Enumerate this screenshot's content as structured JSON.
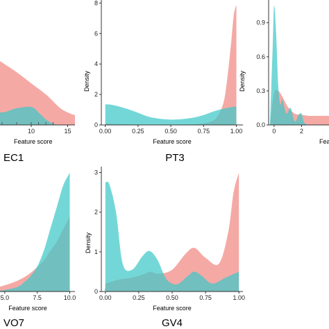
{
  "colors": {
    "red": "#f4a09b",
    "teal": "#3ec8c8",
    "overlap": "#5b9e9a",
    "axis": "#333333",
    "text": "#222222"
  },
  "chart_data": [
    {
      "id": "ec1",
      "type": "area",
      "title": "EC1",
      "xlabel": "Feature score",
      "ylabel": "",
      "xlim": [
        0,
        16
      ],
      "ylim": [
        0,
        0.09
      ],
      "xticks": [
        "10",
        "15"
      ],
      "xtick_values": [
        10,
        15
      ],
      "yticks": [],
      "ytick_values": [],
      "rug": [
        6,
        8,
        10,
        11,
        12,
        13
      ],
      "series": [
        {
          "color": "red",
          "x": [
            0,
            2,
            4,
            6,
            8,
            10,
            12,
            13,
            14,
            15,
            16
          ],
          "y": [
            0.06,
            0.057,
            0.052,
            0.045,
            0.038,
            0.03,
            0.022,
            0.017,
            0.012,
            0.009,
            0.007
          ]
        },
        {
          "color": "teal",
          "x": [
            0,
            2,
            4,
            6,
            8,
            10,
            11,
            12,
            13,
            14,
            16
          ],
          "y": [
            0.014,
            0.014,
            0.011,
            0.009,
            0.012,
            0.013,
            0.009,
            0.004,
            0.001,
            0.0,
            0.0
          ]
        }
      ]
    },
    {
      "id": "pt3",
      "type": "area",
      "title": "PT3",
      "xlabel": "Feature score",
      "ylabel": "Density",
      "xlim": [
        -0.03,
        1.05
      ],
      "ylim": [
        0,
        8.2
      ],
      "xticks": [
        "0.00",
        "0.25",
        "0.50",
        "0.75",
        "1.00"
      ],
      "xtick_values": [
        0,
        0.25,
        0.5,
        0.75,
        1.0
      ],
      "yticks": [
        "0",
        "2",
        "4",
        "6",
        "8"
      ],
      "ytick_values": [
        0,
        2,
        4,
        6,
        8
      ],
      "rug": [],
      "series": [
        {
          "color": "red",
          "x": [
            0,
            0.1,
            0.3,
            0.5,
            0.7,
            0.8,
            0.85,
            0.9,
            0.93,
            0.96,
            0.98,
            1.0
          ],
          "y": [
            0.1,
            0.05,
            0.02,
            0.02,
            0.05,
            0.2,
            0.5,
            1.4,
            3.0,
            5.4,
            7.2,
            7.9
          ]
        },
        {
          "color": "teal",
          "x": [
            0,
            0.05,
            0.15,
            0.25,
            0.35,
            0.5,
            0.65,
            0.75,
            0.85,
            0.95,
            1.0
          ],
          "y": [
            1.35,
            1.32,
            1.1,
            0.8,
            0.5,
            0.35,
            0.45,
            0.65,
            0.95,
            1.15,
            1.2
          ]
        }
      ]
    },
    {
      "id": "third",
      "type": "area",
      "title": "",
      "xlabel": "Fea",
      "ylabel": "Density",
      "xlim": [
        -0.4,
        4
      ],
      "ylim": [
        0,
        1.1
      ],
      "xticks": [
        "0",
        "2"
      ],
      "xtick_values": [
        0,
        2
      ],
      "yticks": [
        "0.0",
        "0.3",
        "0.6",
        "0.9"
      ],
      "ytick_values": [
        0,
        0.3,
        0.6,
        0.9
      ],
      "rug": [],
      "series": [
        {
          "color": "red",
          "x": [
            -0.3,
            0,
            0.3,
            0.6,
            1.0,
            1.5,
            2.0,
            2.5,
            3.0,
            3.5,
            4.0
          ],
          "y": [
            0.0,
            0.28,
            0.3,
            0.25,
            0.16,
            0.1,
            0.09,
            0.08,
            0.08,
            0.08,
            0.08
          ]
        },
        {
          "color": "teal",
          "x": [
            -0.3,
            -0.1,
            0,
            0.15,
            0.3,
            0.45,
            0.6,
            0.9,
            1.2,
            1.5,
            1.8,
            2.0,
            2.2,
            2.6,
            3.0,
            4.0
          ],
          "y": [
            0.0,
            0.7,
            1.05,
            0.8,
            0.35,
            0.18,
            0.22,
            0.1,
            0.15,
            0.03,
            0.09,
            0.1,
            0.02,
            0.0,
            0.0,
            0.0
          ]
        }
      ]
    },
    {
      "id": "vo7",
      "type": "area",
      "title": "VO7",
      "xlabel": "Feature score",
      "ylabel": "",
      "xlim": [
        2.5,
        10.4
      ],
      "ylim": [
        0,
        0.4
      ],
      "xticks": [
        "5.0",
        "7.5",
        "10.0"
      ],
      "xtick_values": [
        5.0,
        7.5,
        10.0
      ],
      "yticks": [],
      "ytick_values": [],
      "rug": [],
      "series": [
        {
          "color": "red",
          "x": [
            2.5,
            4,
            5,
            6,
            7,
            8,
            8.5,
            9,
            9.5,
            10
          ],
          "y": [
            0.005,
            0.01,
            0.02,
            0.035,
            0.06,
            0.1,
            0.13,
            0.16,
            0.2,
            0.24
          ]
        },
        {
          "color": "teal",
          "x": [
            2.5,
            4,
            5,
            6,
            6.5,
            7,
            7.5,
            8,
            8.5,
            9,
            9.5,
            10
          ],
          "y": [
            0.0,
            0.0,
            0.005,
            0.015,
            0.03,
            0.05,
            0.08,
            0.13,
            0.2,
            0.27,
            0.34,
            0.38
          ]
        }
      ]
    },
    {
      "id": "gv4",
      "type": "area",
      "title": "GV4",
      "xlabel": "Feature score",
      "ylabel": "Density",
      "xlim": [
        -0.03,
        1.03
      ],
      "ylim": [
        0,
        3.15
      ],
      "xticks": [
        "0.00",
        "0.25",
        "0.50",
        "0.75",
        "1.00"
      ],
      "xtick_values": [
        0,
        0.25,
        0.5,
        0.75,
        1.0
      ],
      "yticks": [
        "0",
        "1",
        "2",
        "3"
      ],
      "ytick_values": [
        0,
        1,
        2,
        3
      ],
      "rug": [
        0,
        0.333
      ],
      "series": [
        {
          "color": "red",
          "x": [
            0,
            0.1,
            0.2,
            0.3,
            0.333,
            0.4,
            0.5,
            0.6,
            0.667,
            0.75,
            0.85,
            0.92,
            0.96,
            1.0
          ],
          "y": [
            0.2,
            0.3,
            0.35,
            0.45,
            0.5,
            0.45,
            0.55,
            0.95,
            1.1,
            0.85,
            0.7,
            1.5,
            2.5,
            3.0
          ]
        },
        {
          "color": "teal",
          "x": [
            0,
            0.03,
            0.08,
            0.13,
            0.2,
            0.28,
            0.333,
            0.39,
            0.45,
            0.5,
            0.55,
            0.62,
            0.667,
            0.72,
            0.8,
            0.9,
            1.0
          ],
          "y": [
            2.75,
            2.7,
            2.0,
            0.7,
            0.55,
            0.9,
            1.02,
            0.8,
            0.35,
            0.2,
            0.2,
            0.4,
            0.5,
            0.4,
            0.2,
            0.35,
            0.5
          ]
        }
      ]
    }
  ]
}
